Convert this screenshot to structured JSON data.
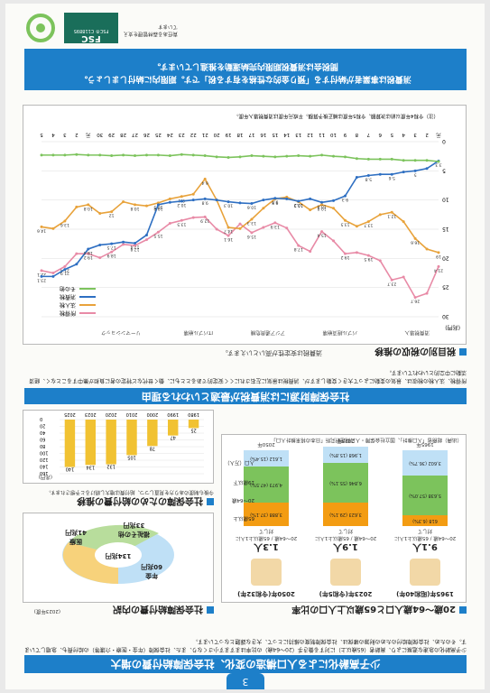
{
  "page_number": "3",
  "main_title": "少子高齢化による人口構造の変化、社会保障給付費の増大",
  "intro_text": "少子高齢化の急速な進展により、高齢者（65歳以上）に対する働き手（20〜64歳）の比率はますます小さくなり、また、社会保障（年金・医療・介護等）の給付費も、急増しています。そのため、社会保障給付のための財源の確保は、社会保障制度の維持にとって、大きな課題となっています。",
  "section1": {
    "heading": "20歳〜64歳人口と65歳以上人口の比率",
    "years": [
      {
        "label": "1965年",
        "sub": "(昭和40年)",
        "ratio": "9.1人",
        "caption": "20〜64歳"
      },
      {
        "label": "2023年",
        "sub": "(令和5年)",
        "ratio": "1.9人",
        "caption": "20〜64歳"
      },
      {
        "label": "2050年",
        "sub": "(令和32年)",
        "ratio": "1.3人",
        "caption": "20〜64歳"
      }
    ],
    "caption_65": "65歳以上1人に対して",
    "legend": [
      "65歳以上",
      "20〜64歳",
      "19歳以下"
    ],
    "axis_label": "人口（万人）",
    "stacks": [
      {
        "year": "1965年",
        "old": "618",
        "old_pct": "(6.3%)",
        "work": "5,638",
        "work_pct": "(57.0%)",
        "young": "3,602",
        "young_pct": "(36.7%)"
      },
      {
        "year": "2023年",
        "old": "3,623",
        "old_pct": "(29.1%)",
        "work": "6,846",
        "work_pct": "(55.1%)",
        "young": "1,968",
        "young_pct": "(15.8%)"
      },
      {
        "year": "2050年",
        "old": "3,888",
        "old_pct": "(37.1%)",
        "work": "4,973",
        "work_pct": "(47.5%)",
        "young": "1,612",
        "young_pct": "(15.4%)"
      }
    ],
    "source": "（出典）総務省「人口推計」、国立社会保障・人口問題研究所「日本の将来推計人口」"
  },
  "section2": {
    "heading": "社会保障給付費の内訳",
    "note": "(2023年度)",
    "total": "134兆円",
    "slices": [
      {
        "label": "年金",
        "value": "60兆円"
      },
      {
        "label": "医療",
        "value": "41兆円"
      },
      {
        "label": "福祉その他",
        "value": "33兆円"
      }
    ]
  },
  "section3": {
    "heading": "社会保障のための給付費の推移",
    "note": "今後も制度のあり方を見直しつつ、給付費は増大し続けると予想されます。",
    "unit": "(兆円)",
    "chart_data": {
      "type": "bar",
      "categories": [
        "1980",
        "1990",
        "2000",
        "2010",
        "2020",
        "2023",
        "2025"
      ],
      "values": [
        25,
        47,
        78,
        105,
        132,
        134,
        140
      ],
      "ylim": [
        0,
        160
      ],
      "yticks": [
        "0",
        "20",
        "40",
        "60",
        "80",
        "100",
        "120",
        "140",
        "160"
      ]
    }
  },
  "band_middle": "社会保障財源には消費税が最適といわれる理由",
  "band_middle_text": "所得税、法人税の税収は、景気の変動によって大きく変動しますが、消費税は景気に左右されにくく安定的であるとともに、働く世代など特定の者に負担が集中することなく、経済活動に中立的といわれています。",
  "section4": {
    "heading": "税目別の税収の推移",
    "sub": "消費税は安定性が高いといえます。",
    "unit": "(兆円)",
    "chart_data": {
      "type": "line",
      "x_labels": [
        "元",
        "2",
        "3",
        "4",
        "5",
        "6",
        "7",
        "8",
        "9",
        "10",
        "11",
        "12",
        "13",
        "14",
        "15",
        "16",
        "17",
        "18",
        "19",
        "20",
        "21",
        "22",
        "23",
        "24",
        "25",
        "26",
        "27",
        "28",
        "29",
        "30",
        "元",
        "2",
        "3",
        "4",
        "5"
      ],
      "series": [
        {
          "name": "所得税",
          "color": "#e88aa6",
          "values": [
            21.4,
            26.0,
            26.7,
            23.2,
            23.7,
            20.4,
            19.5,
            19.0,
            19.2,
            17.0,
            15.4,
            18.8,
            17.8,
            14.8,
            13.9,
            14.7,
            15.6,
            14.1,
            16.1,
            15.0,
            12.9,
            13.0,
            13.5,
            14.0,
            15.5,
            16.8,
            17.8,
            17.6,
            18.9,
            19.9,
            19.2,
            19.2,
            21.4,
            22.5,
            22.1
          ]
        },
        {
          "name": "法人税",
          "color": "#e8a23a",
          "values": [
            19.0,
            18.4,
            16.6,
            13.7,
            12.1,
            12.5,
            13.7,
            14.5,
            13.5,
            11.4,
            10.8,
            11.7,
            10.3,
            9.5,
            9.8,
            11.4,
            13.3,
            14.9,
            14.7,
            10.0,
            6.4,
            9.0,
            9.4,
            9.8,
            10.5,
            11.0,
            10.8,
            10.3,
            12.0,
            12.3,
            10.8,
            11.2,
            13.6,
            14.9,
            14.6
          ]
        },
        {
          "name": "消費税",
          "color": "#2e6fc2",
          "values": [
            3.3,
            4.6,
            5.0,
            5.2,
            5.6,
            5.6,
            5.8,
            6.1,
            9.3,
            10.1,
            10.4,
            9.8,
            10.2,
            9.8,
            9.7,
            10.0,
            10.6,
            10.5,
            10.3,
            10.0,
            9.8,
            10.0,
            10.2,
            10.4,
            10.8,
            16.0,
            17.4,
            17.2,
            17.5,
            17.7,
            18.4,
            21.0,
            21.9,
            23.1,
            23.1
          ]
        },
        {
          "name": "その他",
          "color": "#7cc35c",
          "values": [
            3.4,
            3.2,
            3.2,
            3.2,
            3.0,
            3.0,
            3.0,
            2.9,
            2.6,
            2.5,
            2.3,
            2.5,
            2.4,
            2.5,
            2.6,
            2.5,
            2.4,
            2.6,
            2.7,
            2.6,
            2.4,
            2.3,
            2.2,
            2.4,
            2.3,
            2.3,
            2.4,
            2.3,
            2.4,
            2.3,
            2.3,
            2.2,
            2.3,
            2.3,
            2.3
          ]
        }
      ],
      "ylim": [
        0,
        30
      ],
      "yticks": [
        "0",
        "5",
        "10",
        "15",
        "20",
        "25",
        "30"
      ],
      "annotations": [
        "消費税導入",
        "バブル経済崩壊",
        "アジア通貨危機",
        "ITバブル崩壊",
        "リーマンショック"
      ],
      "footnote": "（注）令和4年度以前は決算額、令和5年度は補正後予算額。平成元年度は消費税導入年度。"
    }
  },
  "band_bottom": "消費税は事業者が納付する「預り金的な性格を有する税」です。期限内に納付しましょう。\n間税会は消費税期限内完納運動を推進しています。",
  "footer": {
    "fsc": "FSC",
    "fsc_text": "責任ある森林管理を支えています",
    "fsc_code": "FSC® C118895"
  },
  "colors": {
    "blue": "#1d7fc9",
    "green": "#7cc35c",
    "orange": "#f39c12",
    "light_blue": "#bfe0f6",
    "yellow": "#f1c232"
  }
}
